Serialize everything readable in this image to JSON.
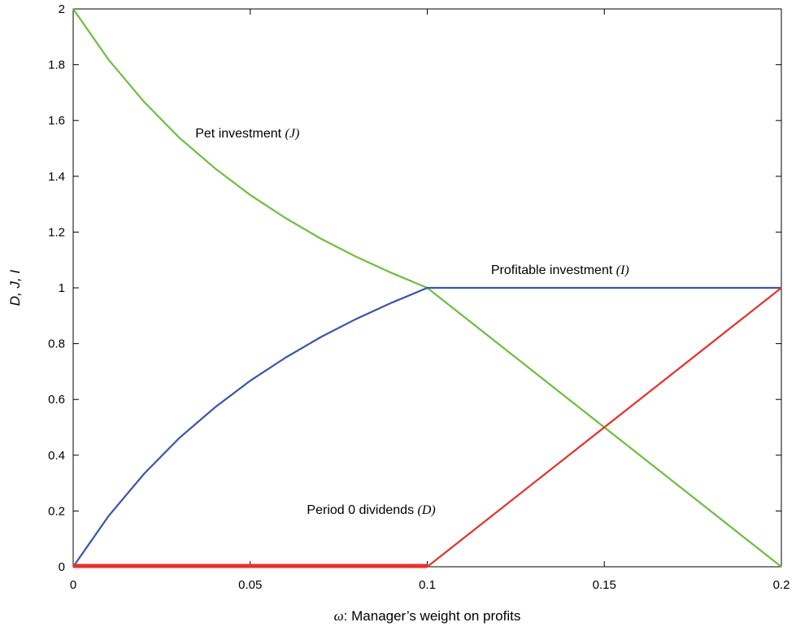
{
  "chart_data": {
    "type": "line",
    "xlabel_symbol": "ω",
    "xlabel_text": ": Manager’s weight on profits",
    "ylabel": "D, J, I",
    "xlim": [
      0,
      0.2
    ],
    "ylim": [
      0,
      2
    ],
    "x_ticks": [
      0,
      0.05,
      0.1,
      0.15,
      0.2
    ],
    "x_tick_labels": [
      "0",
      "0.05",
      "0.1",
      "0.15",
      "0.2"
    ],
    "y_ticks": [
      0,
      0.2,
      0.4,
      0.6,
      0.8,
      1,
      1.2,
      1.4,
      1.6,
      1.8,
      2
    ],
    "y_tick_labels": [
      "0",
      "0.2",
      "0.4",
      "0.6",
      "0.8",
      "1",
      "1.2",
      "1.4",
      "1.6",
      "1.8",
      "2"
    ],
    "grid": false,
    "series": [
      {
        "key": "pet",
        "color": "#6fbe3c",
        "x": [
          0,
          0.01,
          0.02,
          0.03,
          0.04,
          0.05,
          0.06,
          0.07,
          0.08,
          0.09,
          0.1,
          0.11,
          0.12,
          0.13,
          0.14,
          0.15,
          0.16,
          0.17,
          0.18,
          0.19,
          0.2
        ],
        "y": [
          2,
          1.818,
          1.667,
          1.538,
          1.429,
          1.333,
          1.25,
          1.176,
          1.111,
          1.053,
          1.0,
          0.9,
          0.8,
          0.7,
          0.6,
          0.5,
          0.4,
          0.3,
          0.2,
          0.1,
          0
        ]
      },
      {
        "key": "profitable",
        "color": "#3a55a6",
        "x": [
          0,
          0.01,
          0.02,
          0.03,
          0.04,
          0.05,
          0.06,
          0.07,
          0.08,
          0.09,
          0.1,
          0.2
        ],
        "y": [
          0,
          0.182,
          0.333,
          0.462,
          0.571,
          0.667,
          0.75,
          0.824,
          0.889,
          0.947,
          1.0,
          1.0
        ]
      },
      {
        "key": "dividends",
        "color": "#e8302a",
        "x": [
          0,
          0.1,
          0.2
        ],
        "y": [
          0,
          0,
          1
        ]
      }
    ],
    "annotations": [
      {
        "key": "pet",
        "text": "Pet investment ",
        "math": "(J)",
        "x": 0.0345,
        "y": 1.54
      },
      {
        "key": "profitable",
        "text": "Profitable investment ",
        "math": "(I)",
        "x": 0.118,
        "y": 1.05
      },
      {
        "key": "dividends",
        "text": "Period 0 dividends ",
        "math": "(D)",
        "x": 0.066,
        "y": 0.19
      }
    ]
  }
}
